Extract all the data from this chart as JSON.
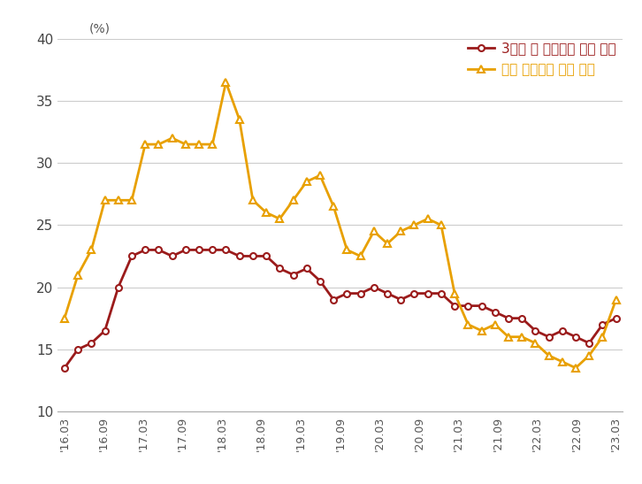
{
  "red_series_label": "3개월 내 주택구매 계획 있음",
  "yellow_series_label": "향후 주택가격 상승 기대",
  "ylabel": "(%)",
  "ylim": [
    10,
    40
  ],
  "yticks": [
    10,
    15,
    20,
    25,
    30,
    35,
    40
  ],
  "x_labels": [
    "'16.03",
    "'16.09",
    "'17.03",
    "'17.09",
    "'18.03",
    "'18.09",
    "'19.03",
    "'19.09",
    "'20.03",
    "'20.09",
    "'21.03",
    "'21.09",
    "'22.03",
    "'22.09",
    "'23.03"
  ],
  "red_x": [
    0,
    1,
    2,
    3,
    4,
    5,
    6,
    7,
    8,
    9,
    10,
    11,
    12,
    13,
    14,
    15,
    16,
    17,
    18,
    19,
    20,
    21,
    22,
    23,
    24,
    25,
    26,
    27,
    28,
    29,
    30,
    31,
    32,
    33,
    34,
    35,
    36,
    37,
    38,
    39,
    40,
    41
  ],
  "red_y": [
    13.5,
    15.0,
    15.5,
    16.5,
    20.0,
    22.5,
    23.0,
    23.0,
    22.5,
    23.0,
    23.0,
    23.0,
    23.0,
    22.5,
    22.5,
    22.5,
    21.5,
    21.0,
    21.5,
    20.5,
    19.0,
    19.5,
    19.5,
    20.0,
    19.5,
    19.0,
    19.5,
    19.5,
    19.5,
    18.5,
    18.5,
    18.5,
    18.0,
    17.5,
    17.5,
    16.5,
    16.0,
    16.5,
    16.0,
    15.5,
    17.0,
    17.5
  ],
  "yellow_x": [
    0,
    1,
    2,
    3,
    4,
    5,
    6,
    7,
    8,
    9,
    10,
    11,
    12,
    13,
    14,
    15,
    16,
    17,
    18,
    19,
    20,
    21,
    22,
    23,
    24,
    25,
    26,
    27,
    28,
    29,
    30,
    31,
    32,
    33,
    34,
    35,
    36,
    37,
    38,
    39,
    40,
    41
  ],
  "yellow_y": [
    17.5,
    21.0,
    23.0,
    27.0,
    27.0,
    27.0,
    31.5,
    31.5,
    32.0,
    31.5,
    31.5,
    31.5,
    36.5,
    33.5,
    27.0,
    26.0,
    25.5,
    27.0,
    28.5,
    29.0,
    26.5,
    23.0,
    22.5,
    24.5,
    23.5,
    24.5,
    25.0,
    25.5,
    25.0,
    19.5,
    17.0,
    16.5,
    17.0,
    16.0,
    16.0,
    15.5,
    14.5,
    14.0,
    13.5,
    14.5,
    16.0,
    19.0
  ],
  "red_color": "#9B1B1B",
  "yellow_color": "#E8A000",
  "background_color": "#FFFFFF",
  "grid_color": "#CCCCCC"
}
